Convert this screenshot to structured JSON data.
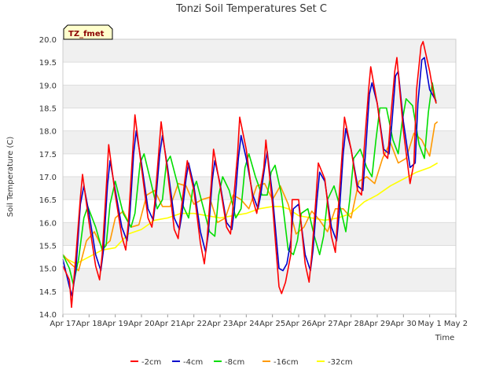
{
  "chart_data": {
    "type": "line",
    "title": "Tonzi Soil Temperatures Set C",
    "xlabel": "Time",
    "ylabel": "Soil Temperature (C)",
    "badge": "TZ_fmet",
    "ylim": [
      14.0,
      20.0
    ],
    "xlim": [
      "Apr 17",
      "May 2"
    ],
    "x_ticks": [
      "Apr 17",
      "Apr 18",
      "Apr 19",
      "Apr 20",
      "Apr 21",
      "Apr 22",
      "Apr 23",
      "Apr 24",
      "Apr 25",
      "Apr 26",
      "Apr 27",
      "Apr 28",
      "Apr 29",
      "Apr 30",
      "May 1",
      "May 2"
    ],
    "y_ticks": [
      "14.0",
      "14.5",
      "15.0",
      "15.5",
      "16.0",
      "16.5",
      "17.0",
      "17.5",
      "18.0",
      "18.5",
      "19.0",
      "19.5",
      "20.0"
    ],
    "grid": "horizontal bands",
    "legend_position": "bottom",
    "x_unit": "days since Apr 17",
    "series": [
      {
        "name": "-2cm",
        "color": "#ff0000",
        "x": [
          0.0,
          0.25,
          0.33,
          0.5,
          0.67,
          0.75,
          1.0,
          1.25,
          1.4,
          1.5,
          1.67,
          1.75,
          2.0,
          2.25,
          2.4,
          2.5,
          2.67,
          2.75,
          3.0,
          3.25,
          3.4,
          3.5,
          3.67,
          3.75,
          4.0,
          4.25,
          4.4,
          4.5,
          4.67,
          4.75,
          5.0,
          5.25,
          5.4,
          5.5,
          5.67,
          5.75,
          6.0,
          6.25,
          6.4,
          6.5,
          6.67,
          6.75,
          7.0,
          7.25,
          7.4,
          7.5,
          7.67,
          7.75,
          8.0,
          8.25,
          8.35,
          8.5,
          8.7,
          8.75,
          9.0,
          9.25,
          9.4,
          9.5,
          9.67,
          9.75,
          10.0,
          10.25,
          10.4,
          10.5,
          10.67,
          10.75,
          11.0,
          11.25,
          11.4,
          11.5,
          11.67,
          11.75,
          12.0,
          12.25,
          12.4,
          12.5,
          12.67,
          12.75,
          13.0,
          13.25,
          13.4,
          13.5,
          13.67,
          13.75,
          14.0,
          14.15,
          14.25
        ],
        "values": [
          15.05,
          14.75,
          14.15,
          15.3,
          16.55,
          17.05,
          16.0,
          15.05,
          14.75,
          15.3,
          16.9,
          17.7,
          16.6,
          15.7,
          15.4,
          16.0,
          17.6,
          18.35,
          17.2,
          16.1,
          15.9,
          16.4,
          17.6,
          18.2,
          17.1,
          15.85,
          15.65,
          16.2,
          17.0,
          17.35,
          16.7,
          15.55,
          15.1,
          15.6,
          16.9,
          17.6,
          16.8,
          15.9,
          15.75,
          16.4,
          17.5,
          18.3,
          17.6,
          16.5,
          16.2,
          16.6,
          17.2,
          17.8,
          16.4,
          14.6,
          14.45,
          14.7,
          15.3,
          16.5,
          16.5,
          15.1,
          14.7,
          15.3,
          16.6,
          17.3,
          16.95,
          15.7,
          15.35,
          16.2,
          17.6,
          18.3,
          17.6,
          16.7,
          16.6,
          17.6,
          18.9,
          19.4,
          18.6,
          17.5,
          17.4,
          18.2,
          19.3,
          19.6,
          18.0,
          16.85,
          17.3,
          18.9,
          19.85,
          19.95,
          19.3,
          18.8,
          18.6
        ]
      },
      {
        "name": "-4cm",
        "color": "#0000cc",
        "x": [
          0.0,
          0.25,
          0.35,
          0.5,
          0.67,
          0.8,
          1.0,
          1.25,
          1.45,
          1.55,
          1.7,
          1.8,
          2.0,
          2.25,
          2.45,
          2.55,
          2.7,
          2.8,
          3.0,
          3.25,
          3.45,
          3.55,
          3.7,
          3.8,
          4.0,
          4.25,
          4.45,
          4.55,
          4.7,
          4.8,
          5.0,
          5.25,
          5.45,
          5.55,
          5.7,
          5.8,
          6.0,
          6.25,
          6.45,
          6.55,
          6.7,
          6.8,
          7.0,
          7.25,
          7.45,
          7.55,
          7.7,
          7.8,
          8.0,
          8.25,
          8.4,
          8.55,
          8.7,
          8.8,
          9.0,
          9.25,
          9.45,
          9.55,
          9.7,
          9.8,
          10.0,
          10.25,
          10.45,
          10.55,
          10.7,
          10.8,
          11.0,
          11.25,
          11.45,
          11.55,
          11.7,
          11.8,
          12.0,
          12.25,
          12.45,
          12.55,
          12.7,
          12.8,
          13.0,
          13.25,
          13.45,
          13.55,
          13.7,
          13.8,
          14.0,
          14.25
        ],
        "values": [
          15.2,
          14.6,
          14.4,
          15.0,
          16.4,
          16.8,
          16.2,
          15.3,
          14.95,
          15.4,
          16.8,
          17.35,
          16.7,
          15.9,
          15.6,
          16.1,
          17.5,
          18.0,
          17.3,
          16.3,
          16.05,
          16.5,
          17.5,
          17.9,
          17.2,
          16.1,
          15.85,
          16.2,
          16.95,
          17.3,
          16.8,
          15.8,
          15.35,
          15.75,
          16.9,
          17.35,
          16.85,
          16.0,
          15.85,
          16.3,
          17.4,
          17.9,
          17.4,
          16.6,
          16.3,
          16.6,
          17.2,
          17.55,
          16.6,
          15.0,
          14.95,
          15.1,
          15.6,
          16.3,
          16.4,
          15.3,
          14.95,
          15.4,
          16.5,
          17.1,
          16.9,
          15.9,
          15.6,
          16.2,
          17.5,
          18.05,
          17.6,
          16.8,
          16.7,
          17.5,
          18.8,
          19.05,
          18.6,
          17.6,
          17.5,
          18.1,
          19.2,
          19.3,
          18.2,
          17.2,
          17.3,
          18.6,
          19.55,
          19.6,
          18.9,
          18.65
        ]
      },
      {
        "name": "-8cm",
        "color": "#00dd00",
        "x": [
          0.0,
          0.25,
          0.4,
          0.6,
          0.8,
          0.95,
          1.25,
          1.5,
          1.65,
          1.8,
          2.0,
          2.3,
          2.6,
          2.75,
          2.95,
          3.1,
          3.35,
          3.6,
          3.8,
          3.95,
          4.1,
          4.35,
          4.6,
          4.8,
          4.95,
          5.1,
          5.35,
          5.6,
          5.8,
          5.95,
          6.1,
          6.35,
          6.6,
          6.8,
          6.95,
          7.1,
          7.35,
          7.6,
          7.8,
          7.95,
          8.1,
          8.35,
          8.6,
          8.8,
          8.95,
          9.1,
          9.35,
          9.6,
          9.8,
          9.95,
          10.1,
          10.35,
          10.6,
          10.8,
          10.95,
          11.1,
          11.35,
          11.6,
          11.8,
          11.95,
          12.1,
          12.35,
          12.6,
          12.8,
          12.95,
          13.1,
          13.35,
          13.6,
          13.8,
          13.95,
          14.1,
          14.25
        ],
        "values": [
          15.3,
          15.0,
          14.65,
          15.2,
          16.1,
          16.35,
          15.9,
          15.4,
          15.5,
          16.4,
          16.9,
          16.2,
          15.9,
          16.2,
          17.3,
          17.5,
          16.9,
          16.3,
          16.5,
          17.3,
          17.45,
          16.9,
          16.35,
          16.1,
          16.7,
          16.9,
          16.35,
          15.8,
          15.7,
          16.6,
          17.0,
          16.7,
          16.1,
          16.3,
          17.2,
          17.5,
          17.0,
          16.6,
          16.6,
          17.1,
          17.25,
          16.6,
          15.4,
          15.3,
          15.6,
          16.2,
          16.3,
          15.7,
          15.3,
          15.7,
          16.5,
          16.8,
          16.3,
          15.8,
          16.5,
          17.4,
          17.6,
          17.2,
          17.0,
          17.8,
          18.5,
          18.5,
          17.8,
          17.5,
          18.2,
          18.7,
          18.55,
          17.7,
          17.4,
          18.4,
          19.05,
          18.6
        ]
      },
      {
        "name": "-16cm",
        "color": "#ff9900",
        "x": [
          0.0,
          0.3,
          0.6,
          0.9,
          1.2,
          1.5,
          1.8,
          2.0,
          2.3,
          2.6,
          2.9,
          3.2,
          3.5,
          3.8,
          4.1,
          4.4,
          4.7,
          5.0,
          5.3,
          5.6,
          5.9,
          6.2,
          6.5,
          6.8,
          7.1,
          7.4,
          7.7,
          8.0,
          8.3,
          8.6,
          8.9,
          9.2,
          9.5,
          9.8,
          10.1,
          10.4,
          10.7,
          11.0,
          11.3,
          11.6,
          11.9,
          12.2,
          12.5,
          12.8,
          13.1,
          13.4,
          13.7,
          14.0,
          14.2,
          14.3
        ],
        "values": [
          15.3,
          15.1,
          14.95,
          15.6,
          15.8,
          15.45,
          15.6,
          16.1,
          16.25,
          15.9,
          15.95,
          16.6,
          16.7,
          16.35,
          16.35,
          16.85,
          16.8,
          16.4,
          16.5,
          16.55,
          16.0,
          16.1,
          16.6,
          16.5,
          16.3,
          16.8,
          16.85,
          16.5,
          16.8,
          16.4,
          15.75,
          15.9,
          16.25,
          16.05,
          15.8,
          16.3,
          16.3,
          16.1,
          16.9,
          17.0,
          16.85,
          17.4,
          17.75,
          17.3,
          17.4,
          17.95,
          17.8,
          17.45,
          18.15,
          18.2
        ]
      },
      {
        "name": "-32cm",
        "color": "#ffff00",
        "x": [
          0.0,
          0.5,
          1.0,
          1.5,
          2.0,
          2.5,
          3.0,
          3.5,
          4.0,
          4.5,
          5.0,
          5.5,
          6.0,
          6.5,
          7.0,
          7.5,
          8.0,
          8.3,
          8.6,
          9.0,
          9.5,
          10.0,
          10.5,
          11.0,
          11.5,
          12.0,
          12.5,
          13.0,
          13.5,
          14.0,
          14.3
        ],
        "values": [
          15.25,
          15.1,
          15.25,
          15.4,
          15.45,
          15.75,
          15.85,
          16.05,
          16.1,
          16.2,
          16.2,
          16.15,
          16.1,
          16.15,
          16.2,
          16.3,
          16.35,
          16.35,
          16.3,
          16.15,
          16.1,
          16.05,
          16.1,
          16.2,
          16.45,
          16.6,
          16.8,
          16.95,
          17.1,
          17.2,
          17.3
        ]
      }
    ]
  }
}
